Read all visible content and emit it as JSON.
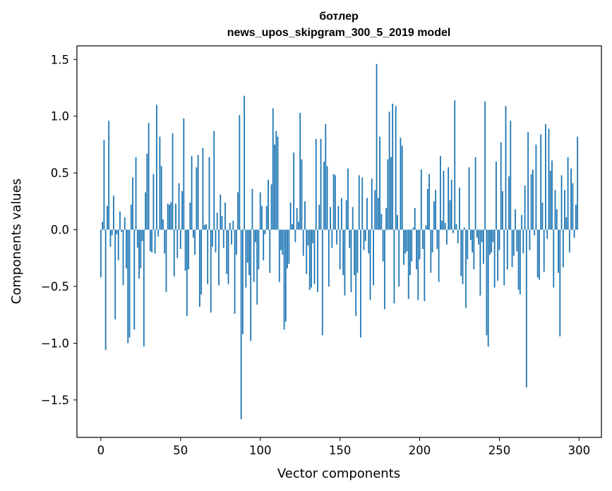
{
  "chart_data": {
    "type": "bar",
    "title_line1": "ботлер",
    "title_line2": "news_upos_skipgram_300_5_2019 model",
    "xlabel": "Vector components",
    "ylabel": "Components values",
    "xlim": [
      -15,
      314
    ],
    "ylim": [
      -1.83,
      1.62
    ],
    "xticks": [
      0,
      50,
      100,
      150,
      200,
      250,
      300
    ],
    "xtick_labels": [
      "0",
      "50",
      "100",
      "150",
      "200",
      "250",
      "300"
    ],
    "yticks": [
      1.5,
      1.0,
      0.5,
      0.0,
      -0.5,
      -1.0,
      -1.5
    ],
    "ytick_labels": [
      "1.5",
      "1.0",
      "0.5",
      "0.0",
      "−0.5",
      "−1.0",
      "−1.5"
    ],
    "bar_color": "#1f77b4",
    "values": [
      -0.42,
      0.07,
      0.79,
      -1.06,
      0.21,
      0.96,
      -0.15,
      -0.05,
      0.3,
      -0.79,
      -0.04,
      -0.27,
      0.16,
      -0.02,
      -0.49,
      0.11,
      -0.34,
      -1.0,
      -0.95,
      0.22,
      0.46,
      -0.88,
      0.64,
      -0.16,
      -0.43,
      -0.34,
      -0.1,
      -1.03,
      0.33,
      0.67,
      0.94,
      -0.19,
      -0.2,
      0.49,
      -0.21,
      1.1,
      -0.06,
      0.82,
      0.56,
      0.09,
      -0.21,
      -0.55,
      0.23,
      0.22,
      0.24,
      0.85,
      -0.41,
      0.23,
      -0.25,
      0.41,
      -0.17,
      0.34,
      0.98,
      -0.36,
      -0.76,
      -0.35,
      0.24,
      0.65,
      -0.07,
      -0.22,
      0.55,
      0.66,
      -0.68,
      -0.57,
      0.72,
      0.04,
      0.05,
      -0.48,
      0.64,
      -0.73,
      -0.15,
      0.87,
      -0.2,
      0.15,
      -0.49,
      0.31,
      0.12,
      -0.16,
      0.24,
      -0.39,
      -0.48,
      0.06,
      -0.13,
      0.08,
      -0.74,
      -0.22,
      0.33,
      1.01,
      -1.67,
      -0.92,
      1.18,
      -0.51,
      -0.29,
      -0.4,
      -0.98,
      0.36,
      -0.46,
      -0.11,
      -0.66,
      -0.35,
      0.33,
      0.21,
      -0.27,
      -0.04,
      0.21,
      0.44,
      -0.38,
      0.4,
      1.07,
      0.75,
      0.87,
      0.82,
      -0.46,
      -0.18,
      -0.22,
      -0.88,
      -0.81,
      -0.34,
      -0.3,
      0.24,
      0.05,
      0.68,
      -0.11,
      0.19,
      0.07,
      1.03,
      0.62,
      -0.23,
      0.25,
      -0.39,
      -0.14,
      -0.53,
      -0.51,
      -0.12,
      -0.48,
      0.8,
      -0.55,
      0.22,
      0.8,
      -0.93,
      0.6,
      0.93,
      0.56,
      -0.5,
      0.2,
      -0.16,
      0.49,
      0.48,
      -0.13,
      0.21,
      -0.35,
      0.28,
      -0.4,
      -0.58,
      0.26,
      0.54,
      -0.16,
      -0.55,
      0.2,
      -0.4,
      -0.76,
      -0.38,
      0.48,
      -0.95,
      0.46,
      -0.18,
      -0.1,
      0.28,
      -0.21,
      -0.62,
      0.45,
      -0.49,
      0.35,
      1.46,
      0.28,
      0.82,
      0.14,
      -0.28,
      -0.7,
      0.19,
      0.62,
      1.04,
      0.64,
      1.11,
      -0.65,
      1.09,
      0.13,
      -0.5,
      0.81,
      0.74,
      -0.31,
      -0.21,
      -0.19,
      -0.61,
      -0.4,
      -0.28,
      0.02,
      0.19,
      -0.35,
      -0.62,
      -0.26,
      0.53,
      -0.17,
      -0.63,
      0.04,
      0.36,
      0.49,
      -0.38,
      -0.2,
      0.25,
      0.35,
      -0.17,
      -0.46,
      0.65,
      0.08,
      0.52,
      0.06,
      -0.13,
      0.55,
      0.26,
      0.44,
      -0.03,
      1.14,
      0.05,
      -0.12,
      0.37,
      -0.41,
      -0.48,
      0.02,
      -0.69,
      -0.26,
      0.55,
      -0.09,
      -0.2,
      -0.35,
      0.64,
      -0.07,
      -0.13,
      -0.58,
      -0.11,
      -0.3,
      1.13,
      -0.93,
      -1.03,
      -0.22,
      -0.2,
      -0.11,
      -0.51,
      0.6,
      -0.45,
      -0.18,
      0.77,
      0.34,
      -0.49,
      1.09,
      -0.35,
      0.47,
      0.96,
      -0.33,
      -0.23,
      0.18,
      -0.19,
      -0.53,
      -0.57,
      0.13,
      -0.21,
      0.39,
      -1.39,
      0.86,
      -0.18,
      0.49,
      0.53,
      -0.05,
      0.75,
      -0.42,
      -0.44,
      0.84,
      0.24,
      -0.37,
      0.93,
      -0.08,
      0.89,
      0.52,
      0.61,
      -0.51,
      0.35,
      0.18,
      -0.38,
      -0.94,
      0.48,
      -0.33,
      0.35,
      0.11,
      0.64,
      -0.2,
      0.54,
      0.41,
      -0.07,
      0.22,
      0.82
    ]
  }
}
